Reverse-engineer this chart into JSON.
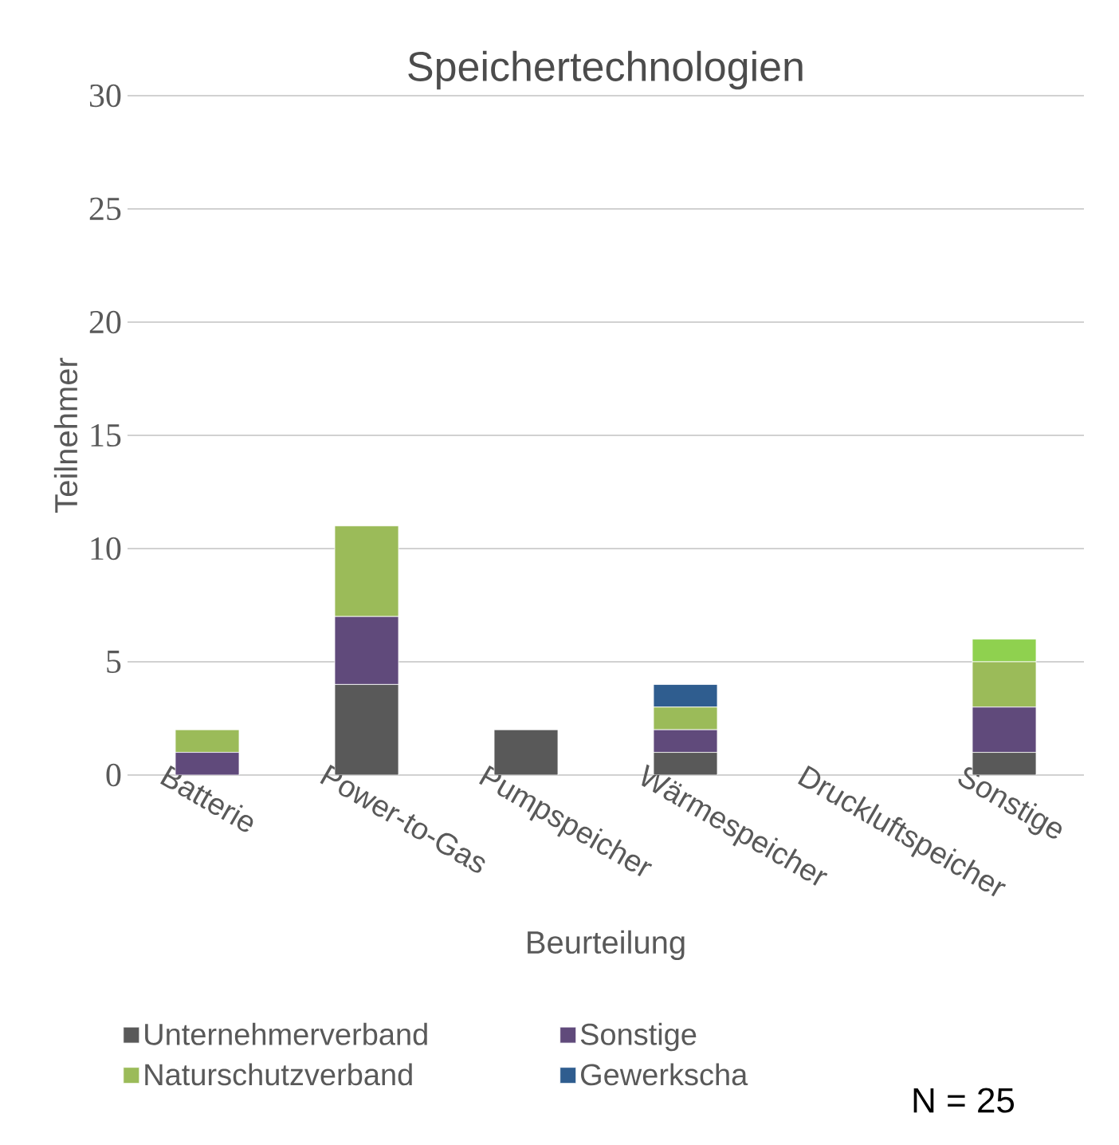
{
  "chart_data": {
    "type": "bar",
    "title": "Speichertechnologien",
    "xlabel": "Beurteilung",
    "ylabel": "Teilnehmer",
    "categories": [
      "Batterie",
      "Power-to-Gas",
      "Pumpspeicher",
      "Wärmespeicher",
      "Druckluftspeicher",
      "Sonstige"
    ],
    "stacked": true,
    "series": [
      {
        "name": "Unternehmerverband",
        "color": "#595959",
        "values": [
          0,
          4,
          2,
          1,
          0,
          1
        ]
      },
      {
        "name": "Sonstige",
        "color": "#604a7b",
        "values": [
          1,
          3,
          0,
          1,
          0,
          2
        ]
      },
      {
        "name": "Naturschutzverband",
        "color": "#9bbb59",
        "values": [
          1,
          4,
          0,
          1,
          0,
          2
        ]
      },
      {
        "name": "Gewerkscha",
        "color": "#2f5d8f",
        "values": [
          0,
          0,
          0,
          1,
          0,
          0
        ]
      },
      {
        "color": "#8fd14f",
        "values": [
          0,
          0,
          0,
          0,
          0,
          1
        ]
      }
    ],
    "ylim": [
      0,
      30
    ],
    "yticks": [
      0,
      5,
      10,
      15,
      20,
      25,
      30
    ],
    "grid": "y",
    "legend": "bottom",
    "annotations": [
      "N = 25"
    ]
  }
}
